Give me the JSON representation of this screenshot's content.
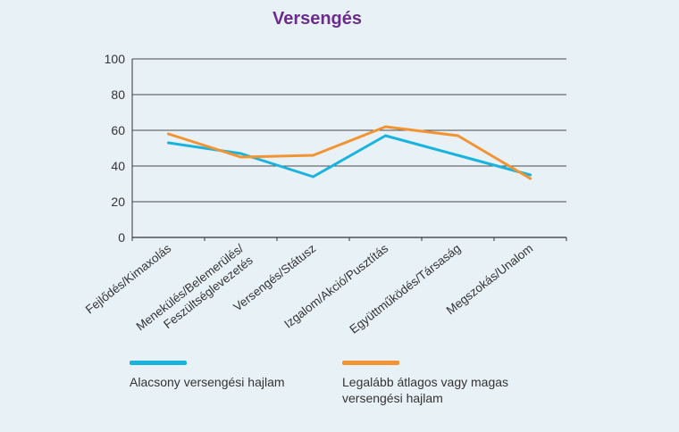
{
  "chart_data": {
    "type": "line",
    "title": "Versengés",
    "categories": [
      "Fejlődés/Kimaxolás",
      "Menekülés/Belemerülés/\nFeszültséglevezetés",
      "Versengés/Státusz",
      "Izgalom/Akció/Pusztítás",
      "Együttműködés/Társaság",
      "Megszokás/Unalom"
    ],
    "y_ticks": [
      0,
      20,
      40,
      60,
      80,
      100
    ],
    "ylim": [
      0,
      100
    ],
    "grid": true,
    "legend_position": "bottom",
    "series": [
      {
        "name": "Alacsony versengési hajlam",
        "color": "#1ab3de",
        "values": [
          53,
          47,
          34,
          57,
          46,
          35
        ]
      },
      {
        "name": "Legalább átlagos vagy magas versengési hajlam",
        "color": "#f39434",
        "values": [
          58,
          45,
          46,
          62,
          57,
          33
        ]
      }
    ]
  }
}
